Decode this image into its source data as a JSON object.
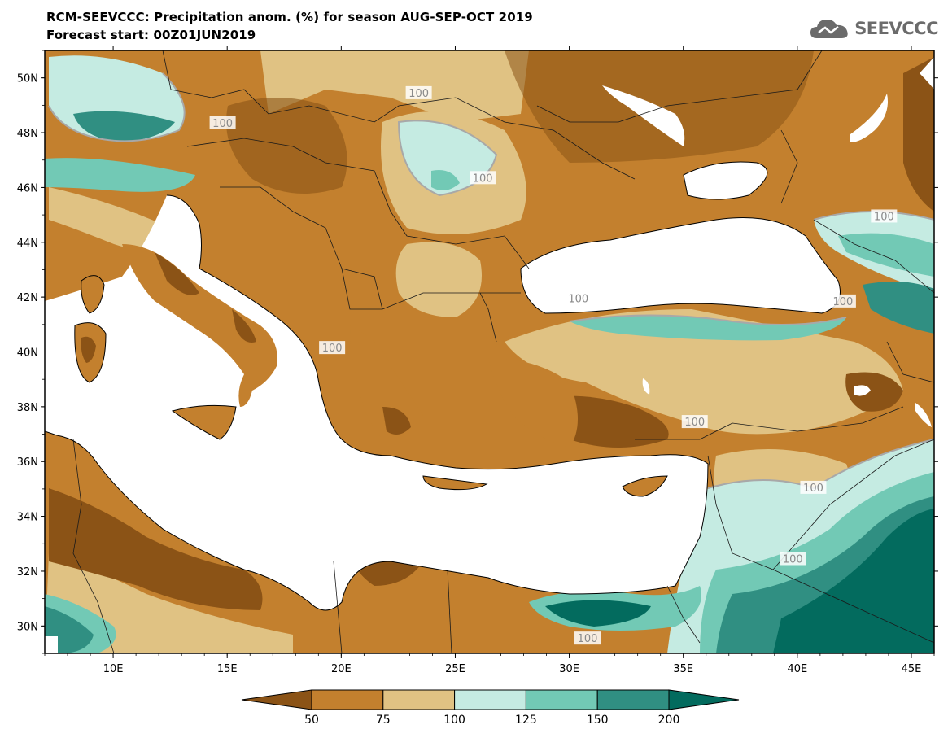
{
  "title_line1": "RCM-SEEVCCC: Precipitation anom. (%) for season AUG-SEP-OCT 2019",
  "title_line2": "Forecast start: 00Z01JUN2019",
  "logo_text": "SEEVCCC",
  "map": {
    "lon_range": [
      7,
      46
    ],
    "lat_range": [
      29,
      51
    ],
    "lat_ticks": [
      "50N",
      "48N",
      "46N",
      "44N",
      "42N",
      "40N",
      "38N",
      "36N",
      "34N",
      "32N",
      "30N"
    ],
    "lon_ticks": [
      "10E",
      "15E",
      "20E",
      "25E",
      "30E",
      "35E",
      "40E",
      "45E"
    ],
    "contour_label": "100",
    "contour_label_count": 11
  },
  "colorbar": {
    "labels": [
      "50",
      "75",
      "100",
      "125",
      "150",
      "200"
    ],
    "colors": [
      "#8b5316",
      "#c3802e",
      "#e0c283",
      "#c5ebe2",
      "#72c9b5",
      "#308f82",
      "#036b5e"
    ]
  },
  "palette": {
    "very_dry": "#8b5316",
    "dry": "#c3802e",
    "slightly_dry": "#e0c283",
    "slightly_wet": "#c5ebe2",
    "wet": "#72c9b5",
    "very_wet": "#308f82",
    "extreme_wet": "#036b5e",
    "water": "#ffffff",
    "contour": "#a8a8a8"
  }
}
